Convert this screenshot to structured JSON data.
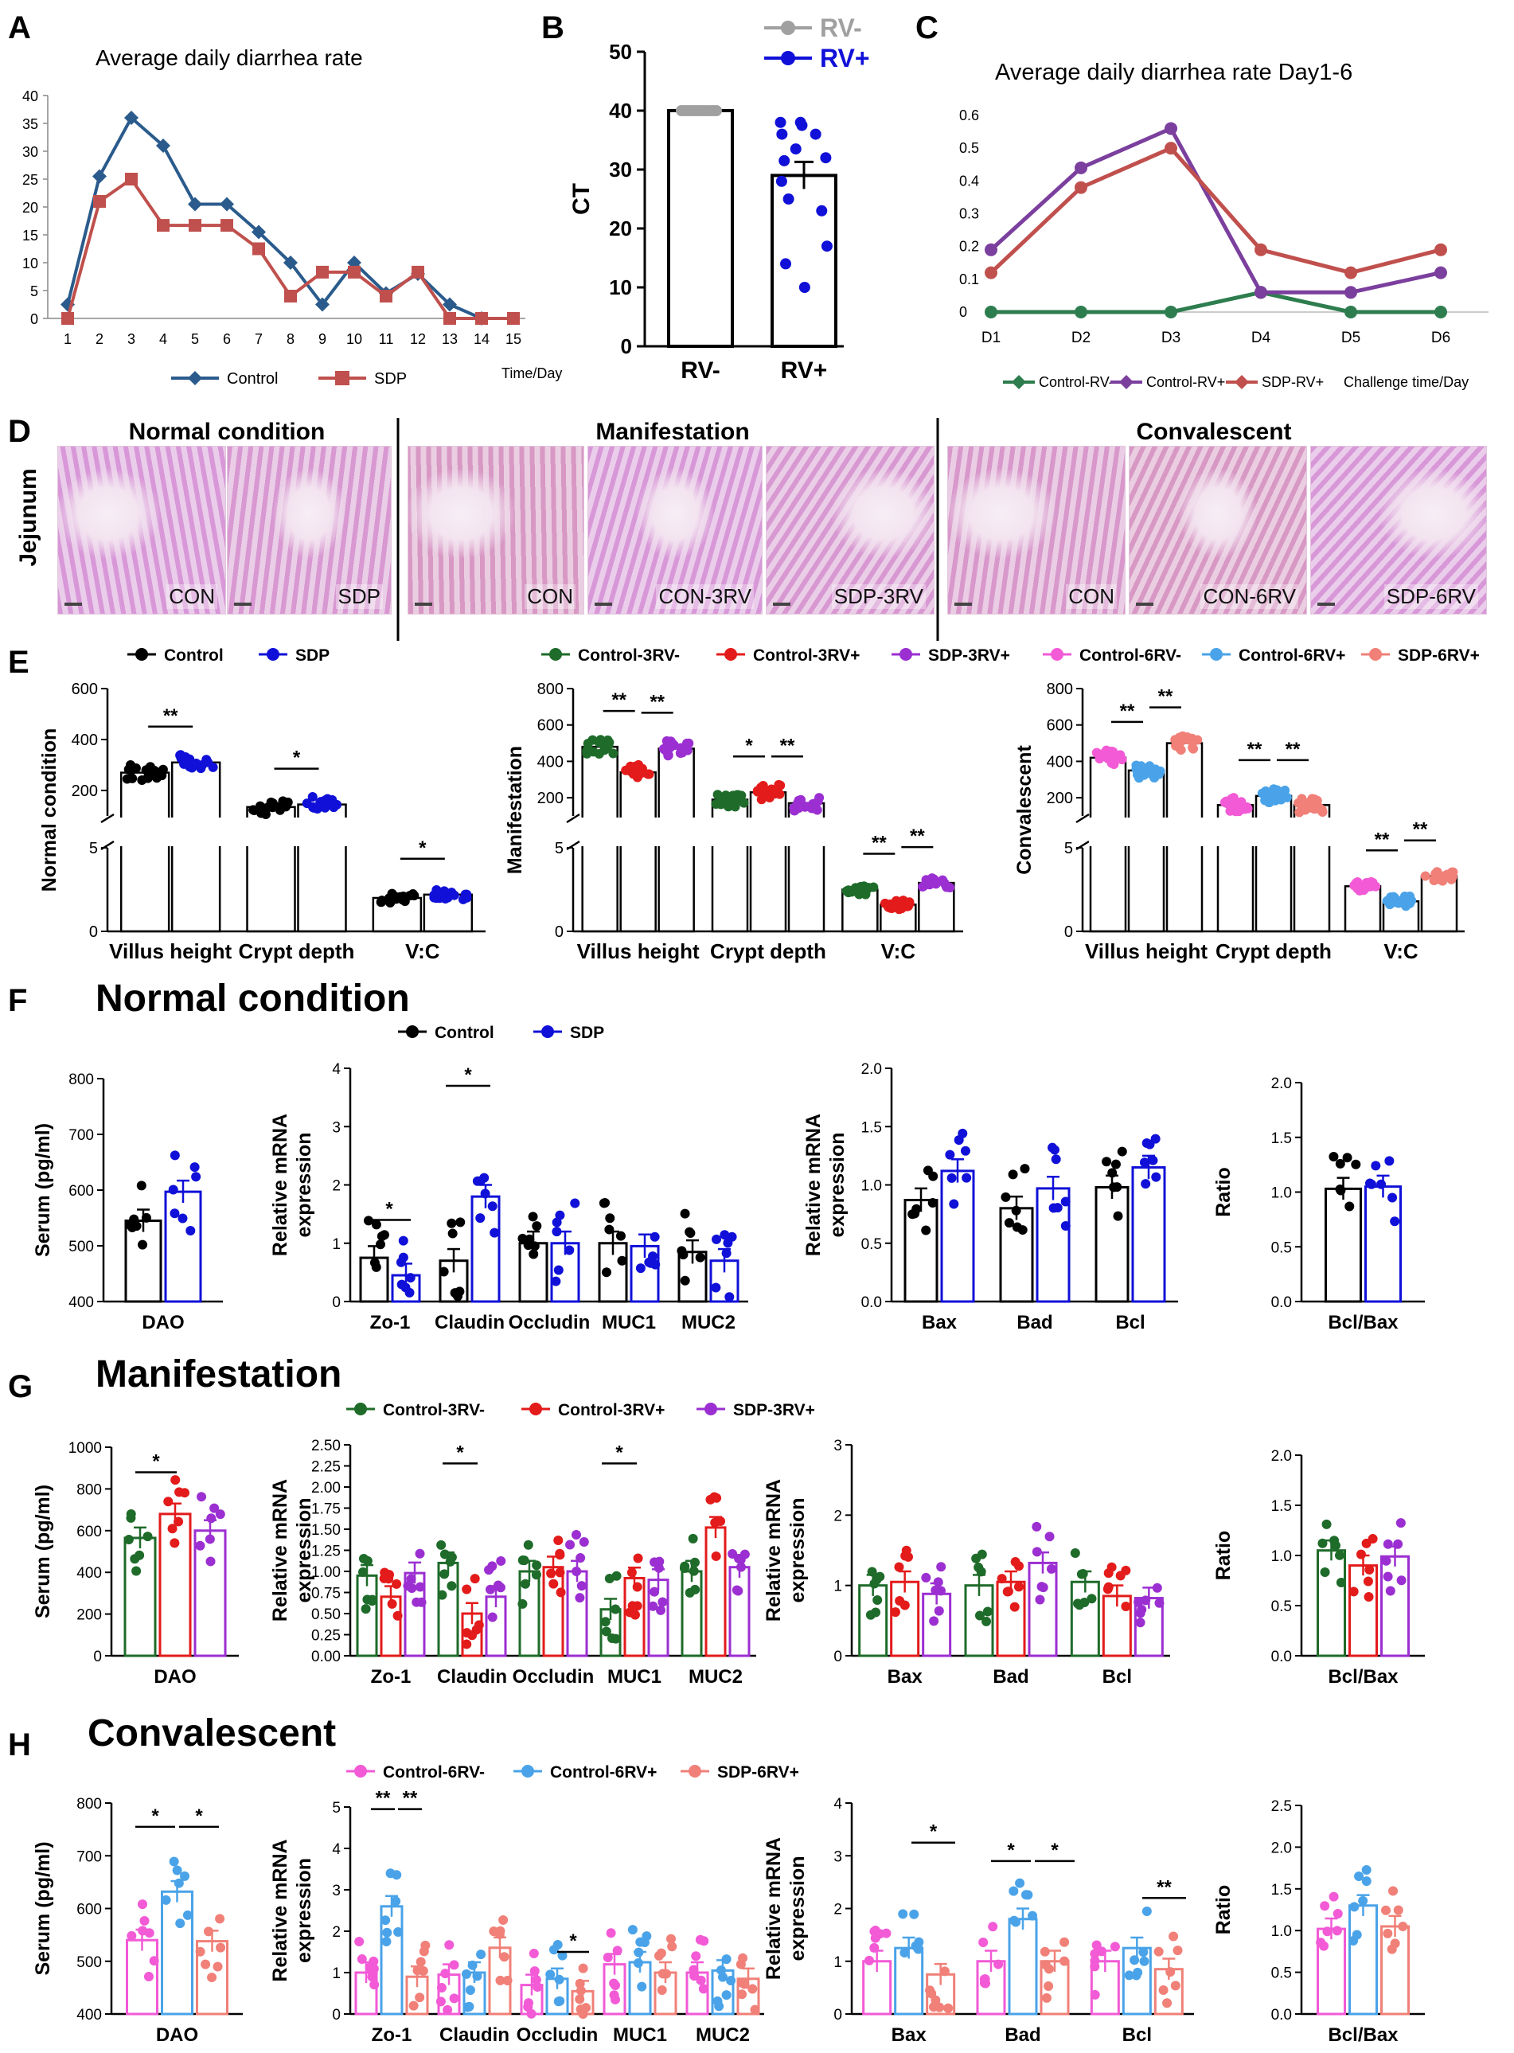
{
  "figure": {
    "panel_letters": [
      "A",
      "B",
      "C",
      "D",
      "E",
      "F",
      "G",
      "H"
    ],
    "section_titles": {
      "F": "Normal condition",
      "G": "Manifestation",
      "H": "Convalescent"
    },
    "colors": {
      "A_control": "#2a5b8c",
      "A_sdp": "#c0504d",
      "B_rvneg": "#a0a0a0",
      "B_rvpos": "#1010d8",
      "C_control_rvneg": "#2e7d4f",
      "C_control_rvpos": "#7b3f9e",
      "C_sdp_rvpos": "#c0504d"
    }
  },
  "histology": {
    "row_label": "Jejunum",
    "groups": [
      {
        "title": "Normal condition",
        "images": [
          "CON",
          "SDP"
        ]
      },
      {
        "title": "Manifestation",
        "images": [
          "CON",
          "CON-3RV",
          "SDP-3RV"
        ]
      },
      {
        "title": "Convalescent",
        "images": [
          "CON",
          "CON-6RV",
          "SDP-6RV"
        ]
      }
    ]
  },
  "chart_data": [
    {
      "id": "A",
      "type": "line",
      "title": "Average daily diarrhea rate",
      "xlabel": "Time/Day",
      "categories": [
        "1",
        "2",
        "3",
        "4",
        "5",
        "6",
        "7",
        "8",
        "9",
        "10",
        "11",
        "12",
        "13",
        "14",
        "15"
      ],
      "ylim": [
        0,
        40
      ],
      "yticks": [
        0,
        5,
        10,
        15,
        20,
        25,
        30,
        35,
        40
      ],
      "series": [
        {
          "name": "Control",
          "marker": "diamond",
          "values": [
            2.5,
            25.5,
            36,
            31,
            20.5,
            20.5,
            15.5,
            10,
            2.5,
            10,
            4.5,
            8,
            2.5,
            0,
            null
          ]
        },
        {
          "name": "SDP",
          "marker": "square",
          "values": [
            0,
            21,
            25,
            16.7,
            16.7,
            16.7,
            12.5,
            4,
            8.3,
            8.3,
            4,
            8.3,
            0,
            0,
            0
          ]
        }
      ]
    },
    {
      "id": "B",
      "type": "bar",
      "ylabel": "CT",
      "categories": [
        "RV-",
        "RV+"
      ],
      "ylim": [
        0,
        50
      ],
      "yticks": [
        0,
        10,
        20,
        30,
        40,
        50
      ],
      "series": [
        {
          "name": "RV-",
          "mean": 40,
          "sem": 0,
          "points": [
            40,
            40,
            40,
            40,
            40,
            40,
            40,
            40,
            40,
            40,
            40,
            40
          ]
        },
        {
          "name": "RV+",
          "mean": 29,
          "sem": 2.3,
          "points": [
            38,
            38,
            37.5,
            36,
            36,
            33.5,
            32,
            31.5,
            28,
            25,
            23,
            17,
            14,
            10
          ]
        }
      ]
    },
    {
      "id": "C",
      "type": "line",
      "title": "Average daily diarrhea rate Day1-6",
      "xlabel": "Challenge time/Day",
      "categories": [
        "D1",
        "D2",
        "D3",
        "D4",
        "D5",
        "D6"
      ],
      "ylim": [
        0,
        0.6
      ],
      "yticks": [
        "0",
        "0.1",
        "0.2",
        "0.3",
        "0.4",
        "0.5",
        "0.6"
      ],
      "series": [
        {
          "name": "Control-RV-",
          "values": [
            0,
            0,
            0,
            0.06,
            0,
            0
          ]
        },
        {
          "name": "Control-RV+",
          "values": [
            0.19,
            0.44,
            0.56,
            0.06,
            0.06,
            0.12
          ]
        },
        {
          "name": "SDP-RV+",
          "values": [
            0.12,
            0.38,
            0.5,
            0.19,
            0.12,
            0.19
          ]
        }
      ]
    },
    {
      "id": "E1",
      "type": "bar",
      "ylabel": "Normal condition",
      "categories": [
        "Villus height",
        "Crypt depth",
        "V:C"
      ],
      "upper_ylim": [
        100,
        600
      ],
      "upper_yticks": [
        "200",
        "400",
        "600"
      ],
      "lower_ylim": [
        0,
        5
      ],
      "lower_yticks": [
        "0",
        "5"
      ],
      "series": [
        {
          "name": "Control",
          "values": [
            270,
            135,
            2.0
          ]
        },
        {
          "name": "SDP",
          "values": [
            310,
            145,
            2.2
          ]
        }
      ],
      "significance": [
        "**",
        "*",
        "*"
      ]
    },
    {
      "id": "E2",
      "type": "bar",
      "ylabel": "Manifestation",
      "categories": [
        "Villus height",
        "Crypt depth",
        "V:C"
      ],
      "upper_ylim": [
        100,
        800
      ],
      "upper_yticks": [
        "200",
        "400",
        "600",
        "800"
      ],
      "lower_ylim": [
        0,
        5
      ],
      "lower_yticks": [
        "0",
        "5"
      ],
      "series": [
        {
          "name": "Control-3RV-",
          "values": [
            480,
            190,
            2.5
          ]
        },
        {
          "name": "Control-3RV+",
          "values": [
            340,
            230,
            1.6
          ]
        },
        {
          "name": "SDP-3RV+",
          "values": [
            470,
            170,
            2.9
          ]
        }
      ],
      "significance": [
        "**",
        "**",
        "*",
        "**",
        "**",
        "**"
      ]
    },
    {
      "id": "E3",
      "type": "bar",
      "ylabel": "Convalescent",
      "categories": [
        "Villus height",
        "Crypt depth",
        "V:C"
      ],
      "upper_ylim": [
        100,
        800
      ],
      "upper_yticks": [
        "200",
        "400",
        "600",
        "800"
      ],
      "lower_ylim": [
        0,
        5
      ],
      "lower_yticks": [
        "0",
        "5"
      ],
      "series": [
        {
          "name": "Control-6RV-",
          "values": [
            420,
            160,
            2.7
          ]
        },
        {
          "name": "Control-6RV+",
          "values": [
            350,
            210,
            1.8
          ]
        },
        {
          "name": "SDP-6RV+",
          "values": [
            500,
            160,
            3.3
          ]
        }
      ],
      "significance": [
        "**",
        "**",
        "**",
        "**",
        "**",
        "**"
      ]
    },
    {
      "id": "F1",
      "type": "bar",
      "ylabel": "Serum (pg/ml)",
      "categories": [
        "DAO"
      ],
      "ylim": [
        400,
        800
      ],
      "yticks": [
        "400",
        "500",
        "600",
        "700",
        "800"
      ],
      "series": [
        {
          "name": "Control",
          "values": [
            545
          ]
        },
        {
          "name": "SDP",
          "values": [
            597
          ]
        }
      ]
    },
    {
      "id": "F2",
      "type": "bar",
      "ylabel": "Relative mRNA expression",
      "categories": [
        "Zo-1",
        "Claudin",
        "Occludin",
        "MUC1",
        "MUC2"
      ],
      "ylim": [
        0,
        4
      ],
      "yticks": [
        "0",
        "1",
        "2",
        "3",
        "4"
      ],
      "legend": [
        "Control",
        "SDP"
      ],
      "series": [
        {
          "name": "Control",
          "values": [
            0.75,
            0.7,
            1.0,
            1.0,
            0.85
          ]
        },
        {
          "name": "SDP",
          "values": [
            0.45,
            1.8,
            1.0,
            0.95,
            0.7
          ]
        }
      ],
      "significance": [
        "*",
        "*"
      ]
    },
    {
      "id": "F3",
      "type": "bar",
      "ylabel": "Relative mRNA expression",
      "categories": [
        "Bax",
        "Bad",
        "Bcl"
      ],
      "ylim": [
        0,
        2
      ],
      "yticks": [
        "0.0",
        "0.5",
        "1.0",
        "1.5",
        "2.0"
      ],
      "series": [
        {
          "name": "Control",
          "values": [
            0.87,
            0.8,
            0.98
          ]
        },
        {
          "name": "SDP",
          "values": [
            1.12,
            0.97,
            1.15
          ]
        }
      ]
    },
    {
      "id": "F4",
      "type": "bar",
      "ylabel": "Ratio",
      "categories": [
        "Bcl/Bax"
      ],
      "ylim": [
        0,
        2
      ],
      "yticks": [
        "0.0",
        "0.5",
        "1.0",
        "1.5",
        "2.0"
      ],
      "series": [
        {
          "name": "Control",
          "values": [
            1.03
          ]
        },
        {
          "name": "SDP",
          "values": [
            1.05
          ]
        }
      ]
    },
    {
      "id": "G1",
      "type": "bar",
      "ylabel": "Serum (pg/ml)",
      "categories": [
        "DAO"
      ],
      "ylim": [
        0,
        1000
      ],
      "yticks": [
        "0",
        "200",
        "400",
        "600",
        "800",
        "1000"
      ],
      "series": [
        {
          "name": "Control-3RV-",
          "values": [
            565
          ]
        },
        {
          "name": "Control-3RV+",
          "values": [
            680
          ]
        },
        {
          "name": "SDP-3RV+",
          "values": [
            600
          ]
        }
      ],
      "significance": [
        "*"
      ]
    },
    {
      "id": "G2",
      "type": "bar",
      "ylabel": "Relative mRNA expression",
      "categories": [
        "Zo-1",
        "Claudin",
        "Occludin",
        "MUC1",
        "MUC2"
      ],
      "ylim": [
        0,
        2.5
      ],
      "yticks": [
        "0.00",
        "0.25",
        "0.50",
        "0.75",
        "1.00",
        "1.25",
        "1.50",
        "1.75",
        "2.00",
        "2.25",
        "2.50"
      ],
      "legend": [
        "Control-3RV-",
        "Control-3RV+",
        "SDP-3RV+"
      ],
      "series": [
        {
          "name": "Control-3RV-",
          "values": [
            0.95,
            1.1,
            1.0,
            0.55,
            1.0
          ]
        },
        {
          "name": "Control-3RV+",
          "values": [
            0.7,
            0.5,
            1.05,
            0.92,
            1.52
          ]
        },
        {
          "name": "SDP-3RV+",
          "values": [
            0.98,
            0.7,
            1.0,
            0.9,
            1.05
          ]
        }
      ],
      "significance": [
        "*",
        "*"
      ]
    },
    {
      "id": "G3",
      "type": "bar",
      "ylabel": "Relative mRNA expression",
      "categories": [
        "Bax",
        "Bad",
        "Bcl"
      ],
      "ylim": [
        0,
        3
      ],
      "yticks": [
        "0",
        "1",
        "2",
        "3"
      ],
      "series": [
        {
          "name": "Control-3RV-",
          "values": [
            1.0,
            1.0,
            1.05
          ]
        },
        {
          "name": "Control-3RV+",
          "values": [
            1.05,
            1.05,
            0.85
          ]
        },
        {
          "name": "SDP-3RV+",
          "values": [
            0.88,
            1.32,
            0.82
          ]
        }
      ]
    },
    {
      "id": "G4",
      "type": "bar",
      "ylabel": "Ratio",
      "categories": [
        "Bcl/Bax"
      ],
      "ylim": [
        0,
        2
      ],
      "yticks": [
        "0.0",
        "0.5",
        "1.0",
        "1.5",
        "2.0"
      ],
      "series": [
        {
          "name": "Control-3RV-",
          "values": [
            1.05
          ]
        },
        {
          "name": "Control-3RV+",
          "values": [
            0.9
          ]
        },
        {
          "name": "SDP-3RV+",
          "values": [
            0.99
          ]
        }
      ]
    },
    {
      "id": "H1",
      "type": "bar",
      "ylabel": "Serum (pg/ml)",
      "categories": [
        "DAO"
      ],
      "ylim": [
        400,
        800
      ],
      "yticks": [
        "400",
        "500",
        "600",
        "700",
        "800"
      ],
      "series": [
        {
          "name": "Control-6RV-",
          "values": [
            540
          ]
        },
        {
          "name": "Control-6RV+",
          "values": [
            632
          ]
        },
        {
          "name": "SDP-6RV+",
          "values": [
            538
          ]
        }
      ],
      "significance": [
        "*",
        "*"
      ]
    },
    {
      "id": "H2",
      "type": "bar",
      "ylabel": "Relative mRNA expression",
      "categories": [
        "Zo-1",
        "Claudin",
        "Occludin",
        "MUC1",
        "MUC2"
      ],
      "ylim": [
        0,
        5
      ],
      "yticks": [
        "0",
        "1",
        "2",
        "3",
        "4",
        "5"
      ],
      "legend": [
        "Control-6RV-",
        "Control-6RV+",
        "SDP-6RV+"
      ],
      "series": [
        {
          "name": "Control-6RV-",
          "values": [
            1.0,
            0.95,
            0.7,
            1.2,
            1.0
          ]
        },
        {
          "name": "Control-6RV+",
          "values": [
            2.6,
            1.0,
            0.85,
            1.25,
            1.05
          ]
        },
        {
          "name": "SDP-6RV+",
          "values": [
            0.9,
            1.6,
            0.55,
            1.0,
            0.85
          ]
        }
      ],
      "significance": [
        "**",
        "**",
        "*"
      ]
    },
    {
      "id": "H3",
      "type": "bar",
      "ylabel": "Relative mRNA expression",
      "categories": [
        "Bax",
        "Bad",
        "Bcl"
      ],
      "ylim": [
        0,
        4
      ],
      "yticks": [
        "0",
        "1",
        "2",
        "3",
        "4"
      ],
      "series": [
        {
          "name": "Control-6RV-",
          "values": [
            1.0,
            1.0,
            1.0
          ]
        },
        {
          "name": "Control-6RV+",
          "values": [
            1.25,
            1.8,
            1.25
          ]
        },
        {
          "name": "SDP-6RV+",
          "values": [
            0.75,
            1.0,
            0.85
          ]
        }
      ],
      "significance": [
        "*",
        "*",
        "*",
        "**"
      ]
    },
    {
      "id": "H4",
      "type": "bar",
      "ylabel": "Ratio",
      "categories": [
        "Bcl/Bax"
      ],
      "ylim": [
        0,
        2.5
      ],
      "yticks": [
        "0.0",
        "0.5",
        "1.0",
        "1.5",
        "2.0",
        "2.5"
      ],
      "series": [
        {
          "name": "Control-6RV-",
          "values": [
            1.02
          ]
        },
        {
          "name": "Control-6RV+",
          "values": [
            1.3
          ]
        },
        {
          "name": "SDP-6RV+",
          "values": [
            1.05
          ]
        }
      ]
    }
  ]
}
